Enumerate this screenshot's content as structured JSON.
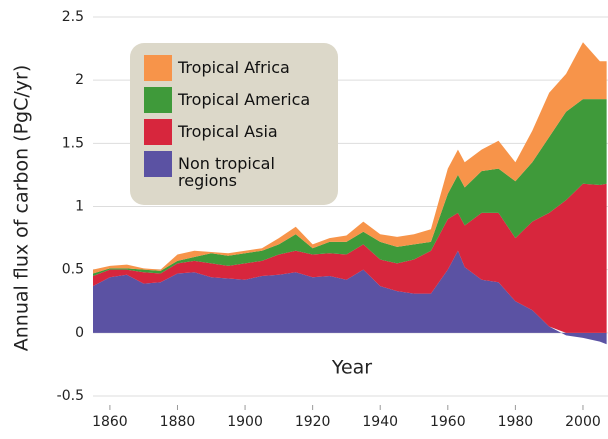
{
  "chart_data": {
    "type": "stacked-area",
    "x_label": "Year",
    "y_label": "Annual flux of carbon (PgC/yr)",
    "x": [
      1855,
      1860,
      1865,
      1870,
      1875,
      1880,
      1885,
      1890,
      1895,
      1900,
      1905,
      1910,
      1915,
      1920,
      1925,
      1930,
      1935,
      1940,
      1945,
      1950,
      1955,
      1960,
      1963,
      1965,
      1970,
      1975,
      1980,
      1985,
      1990,
      1995,
      2000,
      2005,
      2007
    ],
    "series": [
      {
        "name": "Non tropical regions",
        "color": "#5b52a3",
        "values": [
          0.37,
          0.44,
          0.46,
          0.39,
          0.4,
          0.47,
          0.48,
          0.44,
          0.43,
          0.42,
          0.45,
          0.46,
          0.48,
          0.44,
          0.45,
          0.42,
          0.5,
          0.37,
          0.33,
          0.31,
          0.31,
          0.5,
          0.65,
          0.52,
          0.42,
          0.4,
          0.25,
          0.18,
          0.05,
          -0.02,
          -0.04,
          -0.07,
          -0.09
        ]
      },
      {
        "name": "Tropical Asia",
        "color": "#d7263d",
        "values": [
          0.08,
          0.06,
          0.04,
          0.09,
          0.07,
          0.08,
          0.09,
          0.11,
          0.1,
          0.13,
          0.12,
          0.16,
          0.17,
          0.18,
          0.18,
          0.2,
          0.2,
          0.21,
          0.22,
          0.27,
          0.34,
          0.4,
          0.3,
          0.33,
          0.53,
          0.55,
          0.5,
          0.7,
          0.9,
          1.05,
          1.18,
          1.17,
          1.18
        ]
      },
      {
        "name": "Tropical America",
        "color": "#3f9a3a",
        "values": [
          0.02,
          0.01,
          0.01,
          0.02,
          0.02,
          0.02,
          0.03,
          0.08,
          0.08,
          0.08,
          0.08,
          0.08,
          0.13,
          0.05,
          0.09,
          0.1,
          0.1,
          0.14,
          0.13,
          0.12,
          0.07,
          0.2,
          0.3,
          0.3,
          0.33,
          0.35,
          0.45,
          0.47,
          0.6,
          0.7,
          0.67,
          0.68,
          0.67
        ]
      },
      {
        "name": "Tropical Africa",
        "color": "#f7944a",
        "values": [
          0.03,
          0.02,
          0.03,
          0.01,
          0.01,
          0.05,
          0.05,
          0.01,
          0.02,
          0.02,
          0.02,
          0.05,
          0.06,
          0.03,
          0.03,
          0.05,
          0.08,
          0.06,
          0.08,
          0.08,
          0.1,
          0.2,
          0.2,
          0.2,
          0.17,
          0.22,
          0.15,
          0.25,
          0.35,
          0.3,
          0.45,
          0.3,
          0.3
        ]
      }
    ],
    "xlim": [
      1855,
      2008
    ],
    "xticks": [
      1860,
      1880,
      1900,
      1920,
      1940,
      1960,
      1980,
      2000
    ],
    "ylim": [
      -0.5,
      2.5
    ],
    "yticks": [
      -0.5,
      0,
      0.5,
      1,
      1.5,
      2,
      2.5
    ],
    "grid": true,
    "legend": "upper-left"
  }
}
